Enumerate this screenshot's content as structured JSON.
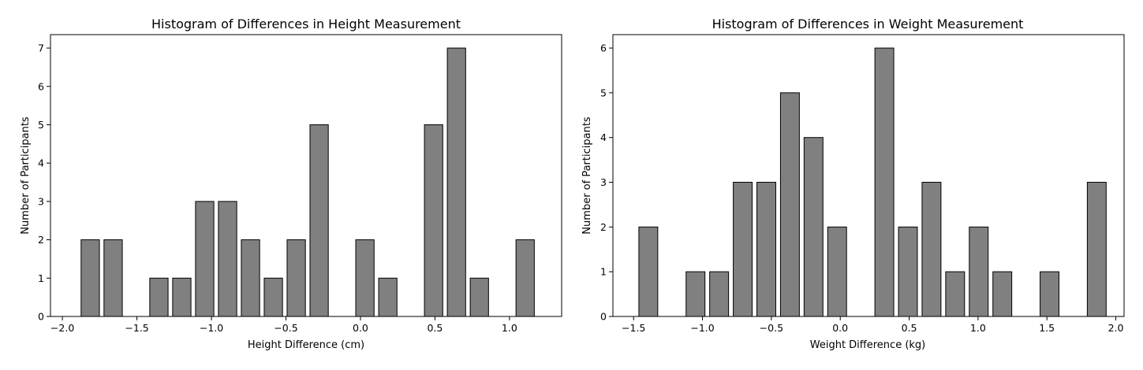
{
  "chart_data": [
    {
      "type": "bar",
      "title": "Histogram of Differences in Height Measurement",
      "xlabel": "Height Difference (cm)",
      "ylabel": "Number of Participants",
      "xlim": [
        -2.08,
        1.35
      ],
      "ylim": [
        0,
        7.35
      ],
      "xticks": [
        -2.0,
        -1.5,
        -1.0,
        -0.5,
        0.0,
        0.5,
        1.0
      ],
      "xtick_labels": [
        "−2.0",
        "−1.5",
        "−1.0",
        "−0.5",
        "0.0",
        "0.5",
        "1.0"
      ],
      "yticks": [
        0,
        1,
        2,
        3,
        4,
        5,
        6,
        7
      ],
      "ytick_labels": [
        "0",
        "1",
        "2",
        "3",
        "4",
        "5",
        "6",
        "7"
      ],
      "bin_start": -1.89,
      "bin_width": 0.1536,
      "bar_fraction": 0.8,
      "values": [
        2,
        2,
        0,
        1,
        1,
        3,
        3,
        2,
        1,
        2,
        5,
        0,
        2,
        1,
        0,
        5,
        7,
        1,
        0,
        2
      ],
      "bar_color": "#808080",
      "edge_color": "#000000",
      "grid": false
    },
    {
      "type": "bar",
      "title": "Histogram of Differences in Weight Measurement",
      "xlabel": "Weight Difference (kg)",
      "ylabel": "Number of Participants",
      "xlim": [
        -1.65,
        2.06
      ],
      "ylim": [
        0,
        6.3
      ],
      "xticks": [
        -1.5,
        -1.0,
        -0.5,
        0.0,
        0.5,
        1.0,
        1.5,
        2.0
      ],
      "xtick_labels": [
        "−1.5",
        "−1.0",
        "−0.5",
        "0.0",
        "0.5",
        "1.0",
        "1.5",
        "2.0"
      ],
      "yticks": [
        0,
        1,
        2,
        3,
        4,
        5,
        6
      ],
      "ytick_labels": [
        "0",
        "1",
        "2",
        "3",
        "4",
        "5",
        "6"
      ],
      "bin_start": -1.4787,
      "bin_width": 0.1713,
      "bar_fraction": 0.8,
      "values": [
        2,
        0,
        1,
        1,
        3,
        3,
        5,
        4,
        2,
        0,
        6,
        2,
        3,
        1,
        2,
        1,
        0,
        1,
        0,
        3
      ],
      "bar_color": "#808080",
      "edge_color": "#000000",
      "grid": false
    }
  ]
}
